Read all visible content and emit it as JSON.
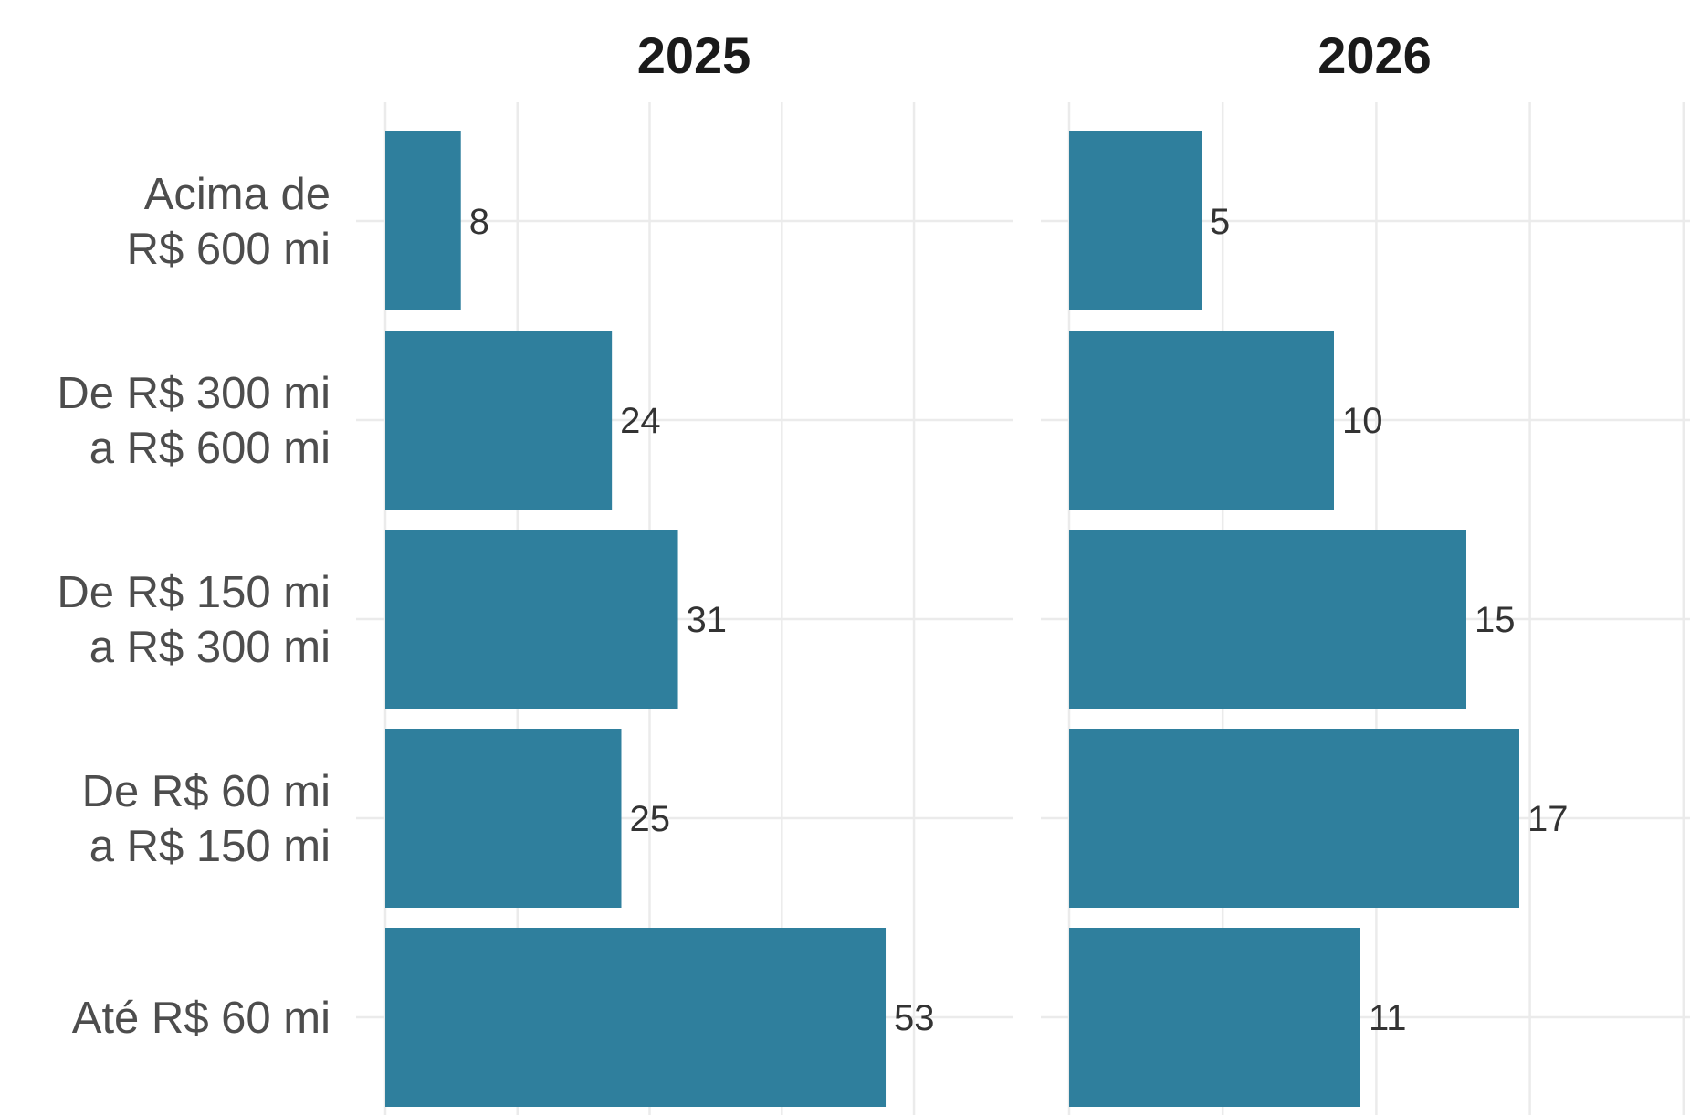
{
  "chart_data": {
    "type": "bar",
    "orientation": "horizontal",
    "categories": [
      "Acima de\nR$ 600 mi",
      "De R$ 300 mi\na R$ 600 mi",
      "De R$ 150 mi\na R$ 300 mi",
      "De R$ 60 mi\na R$ 150 mi",
      "Até R$ 60 mi"
    ],
    "facets": [
      {
        "title": "2025",
        "values": [
          8,
          24,
          31,
          25,
          53
        ],
        "xlim": [
          0,
          66.5
        ],
        "grid_major": [
          0,
          28
        ],
        "grid_minor": [
          14,
          42,
          56
        ]
      },
      {
        "title": "2026",
        "values": [
          5,
          10,
          15,
          17,
          11
        ],
        "xlim": [
          0,
          25.9
        ],
        "grid_major": [
          0,
          11.6
        ],
        "grid_minor": [
          5.8,
          17.4,
          23.2
        ]
      }
    ],
    "bar_color": "#2f7f9d",
    "grid": true,
    "legend": "none"
  }
}
